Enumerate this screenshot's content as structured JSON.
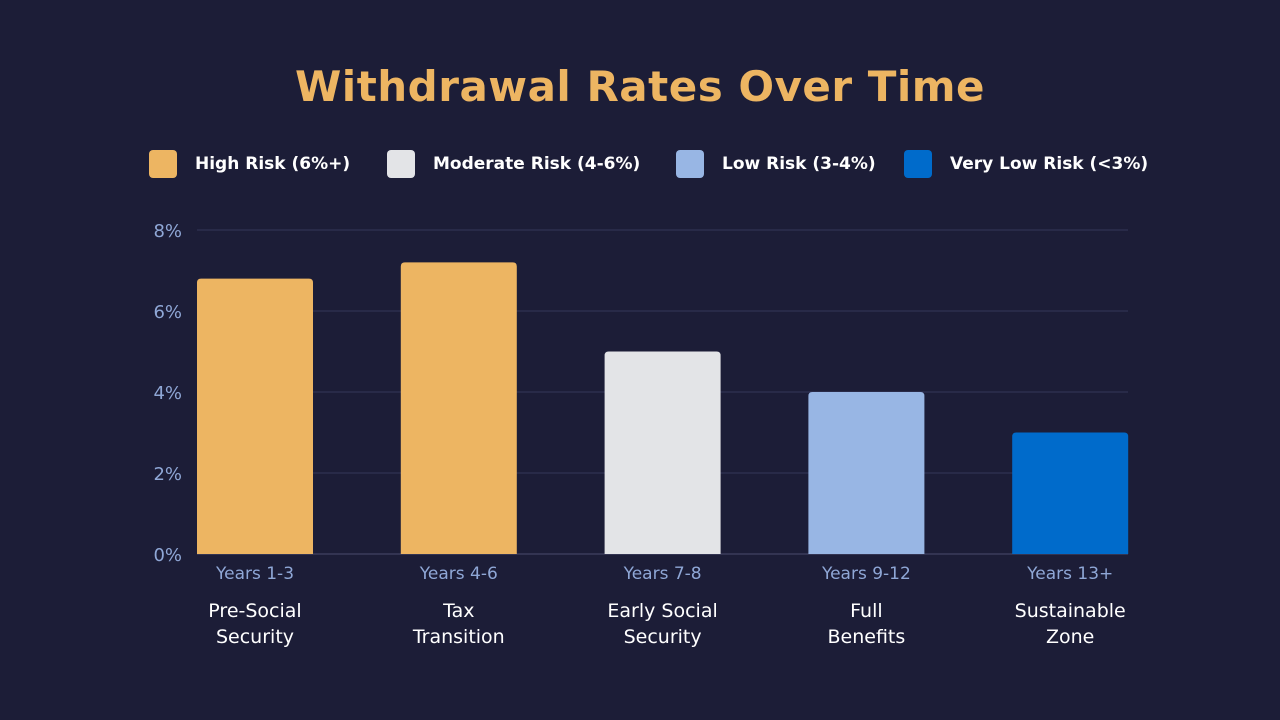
{
  "chart_data": {
    "type": "bar",
    "title": "Withdrawal Rates Over Time",
    "categories": [
      "Years 1-3",
      "Years 4-6",
      "Years 7-8",
      "Years 9-12",
      "Years 13+"
    ],
    "subcategories": [
      [
        "Pre-Social",
        "Security"
      ],
      [
        "Tax",
        "Transition"
      ],
      [
        "Early Social",
        "Security"
      ],
      [
        "Full",
        "Benefits"
      ],
      [
        "Sustainable",
        "Zone"
      ]
    ],
    "values": [
      6.8,
      7.2,
      5.0,
      4.0,
      3.0
    ],
    "bar_colors": [
      "#edb562",
      "#edb562",
      "#e3e4e7",
      "#98b6e4",
      "#006bcb"
    ],
    "ylim": [
      0,
      8
    ],
    "yticks": [
      "0%",
      "2%",
      "4%",
      "6%",
      "8%"
    ],
    "ytick_values": [
      0,
      2,
      4,
      6,
      8
    ],
    "xlabel": "",
    "ylabel": "",
    "grid": true,
    "legend_placement": "top",
    "legend": [
      {
        "label": "High Risk (6%+)",
        "color": "#edb562"
      },
      {
        "label": "Moderate Risk (4-6%)",
        "color": "#e3e4e7"
      },
      {
        "label": "Low Risk (3-4%)",
        "color": "#98b6e4"
      },
      {
        "label": "Very Low Risk (<3%)",
        "color": "#006bcb"
      }
    ]
  }
}
